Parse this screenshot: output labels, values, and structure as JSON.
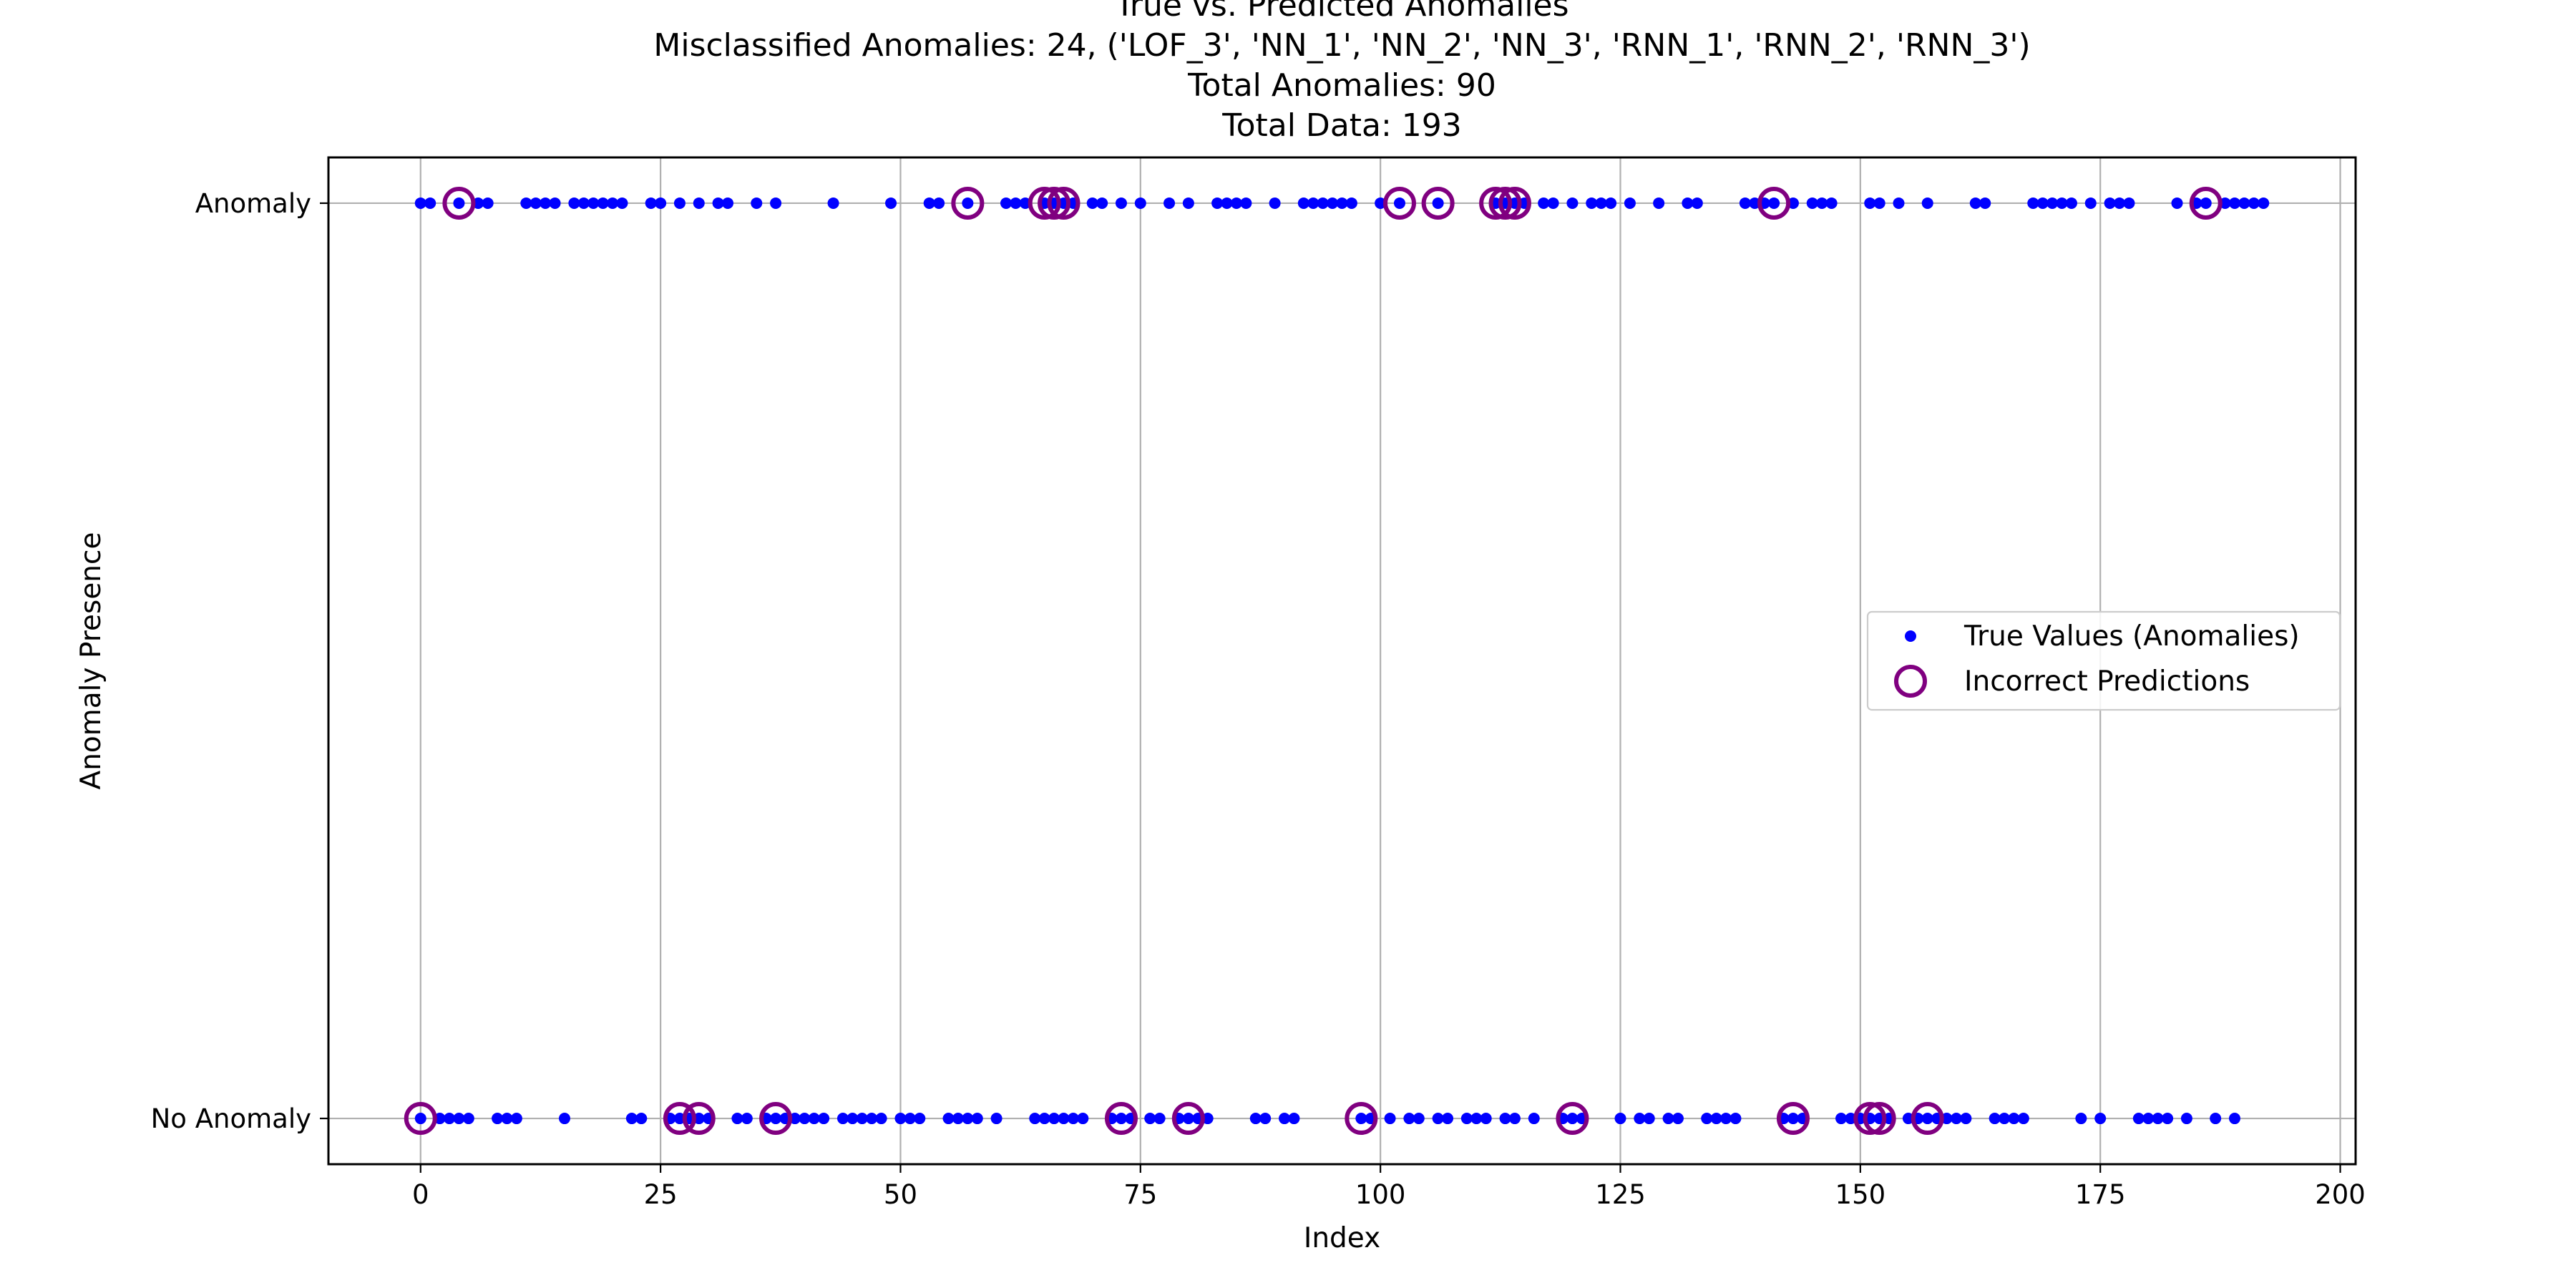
{
  "chart_data": {
    "type": "scatter",
    "title_lines": [
      "True vs. Predicted Anomalies",
      "Misclassified Anomalies: 24, ('LOF_3', 'NN_1', 'NN_2', 'NN_3', 'RNN_1', 'RNN_2', 'RNN_3')",
      "Total Anomalies: 90",
      "Total Data: 193"
    ],
    "xlabel": "Index",
    "ylabel": "Anomaly Presence",
    "xlim": [
      -9.6,
      201.6
    ],
    "ylim": [
      -0.05,
      1.05
    ],
    "x_ticks": [
      0,
      25,
      50,
      75,
      100,
      125,
      150,
      175,
      200
    ],
    "y_ticks": [
      {
        "value": 0,
        "label": "No Anomaly"
      },
      {
        "value": 1,
        "label": "Anomaly"
      }
    ],
    "grid": true,
    "legend": {
      "position": "center-right",
      "entries": [
        {
          "label": "True Values (Anomalies)",
          "marker": "dot",
          "color": "#0000ff"
        },
        {
          "label": "Incorrect Predictions",
          "marker": "ring",
          "color": "#800080"
        }
      ]
    },
    "series": [
      {
        "name": "True Values (Anomalies)",
        "marker": "dot",
        "color": "#0000ff",
        "anomaly_x": [
          0,
          1,
          4,
          6,
          7,
          11,
          12,
          13,
          14,
          16,
          17,
          18,
          19,
          20,
          21,
          24,
          25,
          27,
          29,
          31,
          32,
          35,
          37,
          43,
          49,
          53,
          54,
          57,
          61,
          62,
          63,
          65,
          66,
          67,
          68,
          70,
          71,
          73,
          75,
          78,
          80,
          83,
          84,
          85,
          86,
          89,
          92,
          93,
          94,
          95,
          96,
          97,
          100,
          102,
          106,
          112,
          113,
          114,
          115,
          117,
          118,
          120,
          122,
          123,
          124,
          126,
          129,
          132,
          133,
          138,
          139,
          140,
          141,
          143,
          145,
          146,
          147,
          151,
          152,
          154,
          157,
          162,
          163,
          168,
          169,
          170,
          171,
          172,
          174,
          176,
          177,
          178,
          183,
          185,
          186,
          188,
          189,
          190,
          191,
          192
        ],
        "normal_x": [
          0,
          2,
          3,
          4,
          5,
          8,
          9,
          10,
          15,
          22,
          23,
          26,
          27,
          28,
          29,
          30,
          33,
          34,
          36,
          37,
          38,
          39,
          40,
          41,
          42,
          44,
          45,
          46,
          47,
          48,
          50,
          51,
          52,
          55,
          56,
          57,
          58,
          60,
          64,
          65,
          66,
          67,
          68,
          69,
          72,
          73,
          74,
          76,
          77,
          79,
          80,
          81,
          82,
          87,
          88,
          90,
          91,
          98,
          99,
          101,
          103,
          104,
          106,
          107,
          109,
          110,
          111,
          113,
          114,
          116,
          119,
          120,
          121,
          125,
          127,
          128,
          130,
          131,
          134,
          135,
          136,
          137,
          142,
          143,
          144,
          148,
          149,
          150,
          151,
          152,
          153,
          155,
          156,
          157,
          158,
          159,
          160,
          161,
          164,
          165,
          166,
          167,
          173,
          175,
          179,
          180,
          181,
          182,
          184,
          187,
          189
        ]
      },
      {
        "name": "Incorrect Predictions",
        "marker": "ring",
        "color": "#800080",
        "anomaly_x": [
          4,
          57,
          65,
          66,
          67,
          102,
          106,
          112,
          113,
          114,
          141,
          186
        ],
        "normal_x": [
          0,
          27,
          29,
          37,
          73,
          80,
          98,
          120,
          143,
          151,
          152,
          157
        ]
      }
    ]
  }
}
